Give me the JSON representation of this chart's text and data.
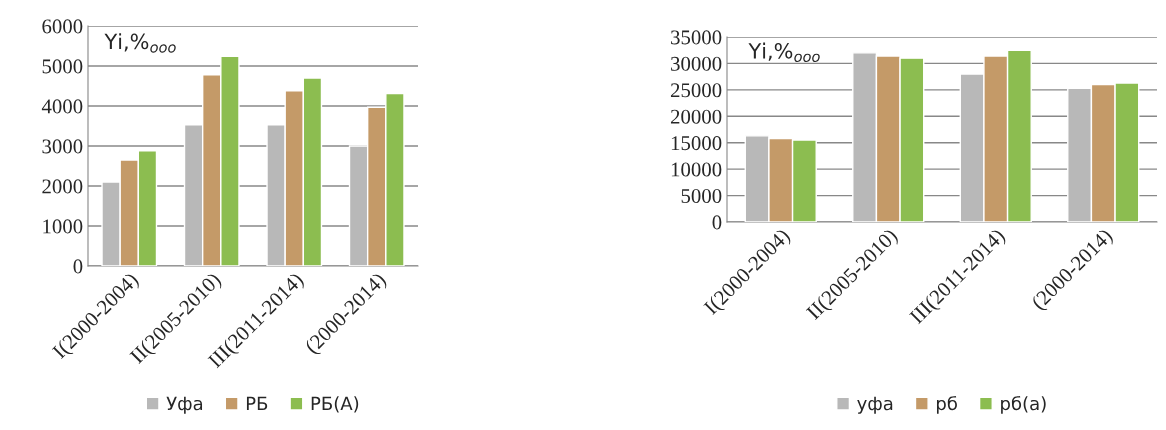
{
  "chart_data": [
    {
      "type": "bar",
      "categories": [
        "I(2000-2004)",
        "II(2005-2010)",
        "III(2011-2014)",
        "(2000-2014)"
      ],
      "series": [
        {
          "name": "Уфа",
          "color": "#b8b8b8",
          "values": [
            2100,
            3530,
            3530,
            3000
          ]
        },
        {
          "name": "РБ",
          "color": "#c49a68",
          "values": [
            2650,
            4780,
            4380,
            3970
          ]
        },
        {
          "name": "РБ(А)",
          "color": "#8cbd50",
          "values": [
            2880,
            5240,
            4700,
            4310
          ]
        }
      ],
      "ylim": [
        0,
        6000
      ],
      "yticks": [
        0,
        1000,
        2000,
        3000,
        4000,
        5000,
        6000
      ],
      "grid": "y",
      "legend": "bottom",
      "annotations": [
        "Yi,%$_{ooo}$"
      ]
    },
    {
      "type": "bar",
      "categories": [
        "I(2000-2004)",
        "II(2005-2010)",
        "III(2011-2014)",
        "(2000-2014)"
      ],
      "series": [
        {
          "name": "уфа",
          "color": "#b8b8b8",
          "values": [
            16300,
            32000,
            28000,
            25300
          ]
        },
        {
          "name": "рб",
          "color": "#c49a68",
          "values": [
            15800,
            31400,
            31400,
            26000
          ]
        },
        {
          "name": "рб(а)",
          "color": "#8cbd50",
          "values": [
            15500,
            31000,
            32500,
            26300
          ]
        }
      ],
      "ylim": [
        0,
        35000
      ],
      "yticks": [
        0,
        5000,
        10000,
        15000,
        20000,
        25000,
        30000,
        35000
      ],
      "grid": "y",
      "legend": "bottom",
      "annotations": [
        "Yi,%$_{ooo}$"
      ]
    }
  ]
}
